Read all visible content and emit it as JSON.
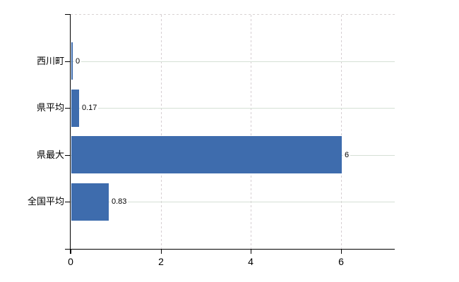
{
  "chart_data": {
    "type": "bar",
    "orientation": "horizontal",
    "title": "",
    "categories": [
      "西川町",
      "県平均",
      "県最大",
      "全国平均"
    ],
    "values": [
      0,
      0.17,
      6,
      0.83
    ],
    "data_labels": [
      "0",
      "0.17",
      "6",
      "0.83"
    ],
    "x_ticks": [
      0,
      2,
      4,
      6
    ],
    "x_tick_labels": [
      "0",
      "2",
      "4",
      "6"
    ],
    "xlim": [
      0,
      7.2
    ],
    "legend_position": "none",
    "grid": {
      "horizontal": "solid",
      "vertical": "dashed"
    },
    "colors": {
      "bar": "#3e6cad",
      "axis": "#000000",
      "h_gridline": "#d5e0d5",
      "v_gridline": "#d6ced2",
      "top_border_dashed": "#d8d2d2",
      "background": "#ffffff",
      "label_text": "#000000"
    }
  }
}
